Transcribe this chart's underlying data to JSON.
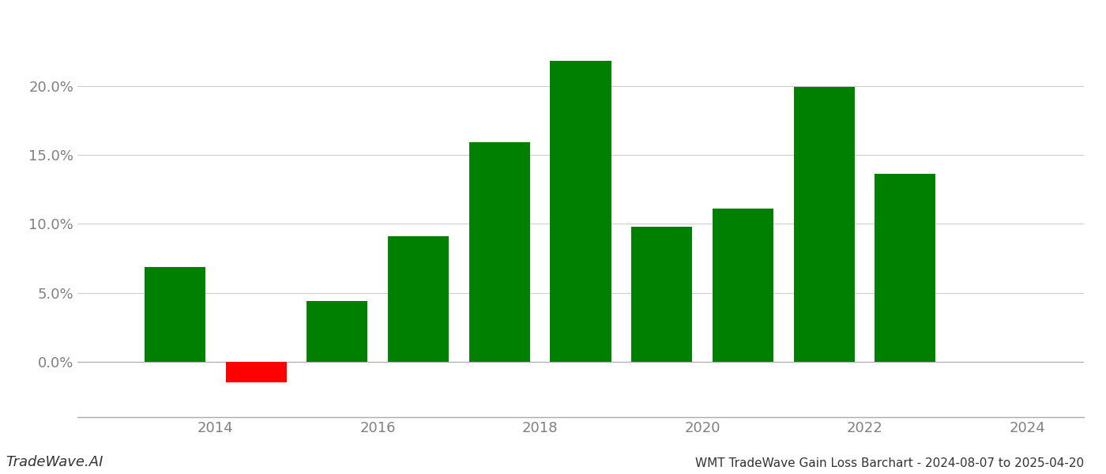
{
  "years": [
    2013,
    2014,
    2015,
    2016,
    2017,
    2018,
    2019,
    2020,
    2021,
    2022,
    2023
  ],
  "values": [
    0.069,
    -0.015,
    0.044,
    0.091,
    0.159,
    0.218,
    0.098,
    0.111,
    0.199,
    0.136,
    0.0
  ],
  "colors": [
    "#008000",
    "#ff0000",
    "#008000",
    "#008000",
    "#008000",
    "#008000",
    "#008000",
    "#008000",
    "#008000",
    "#008000",
    "#008000"
  ],
  "title": "WMT TradeWave Gain Loss Barchart - 2024-08-07 to 2025-04-20",
  "watermark": "TradeWave.AI",
  "background_color": "#ffffff",
  "grid_color": "#cccccc",
  "axis_label_color": "#808080",
  "bar_width": 0.75,
  "ylim_min": -0.04,
  "ylim_max": 0.245,
  "yticks": [
    0.0,
    0.05,
    0.1,
    0.15,
    0.2
  ],
  "ytick_labels": [
    "0.0%",
    "5.0%",
    "10.0%",
    "15.0%",
    "20.0%"
  ],
  "xticks": [
    2014,
    2016,
    2018,
    2020,
    2022,
    2024
  ],
  "xtick_labels": [
    "2014",
    "2016",
    "2018",
    "2020",
    "2022",
    "2024"
  ],
  "xlim_min": 2012.3,
  "xlim_max": 2024.7,
  "fig_width": 14.0,
  "fig_height": 6.0,
  "title_fontsize": 11,
  "watermark_fontsize": 13,
  "tick_fontsize": 13
}
